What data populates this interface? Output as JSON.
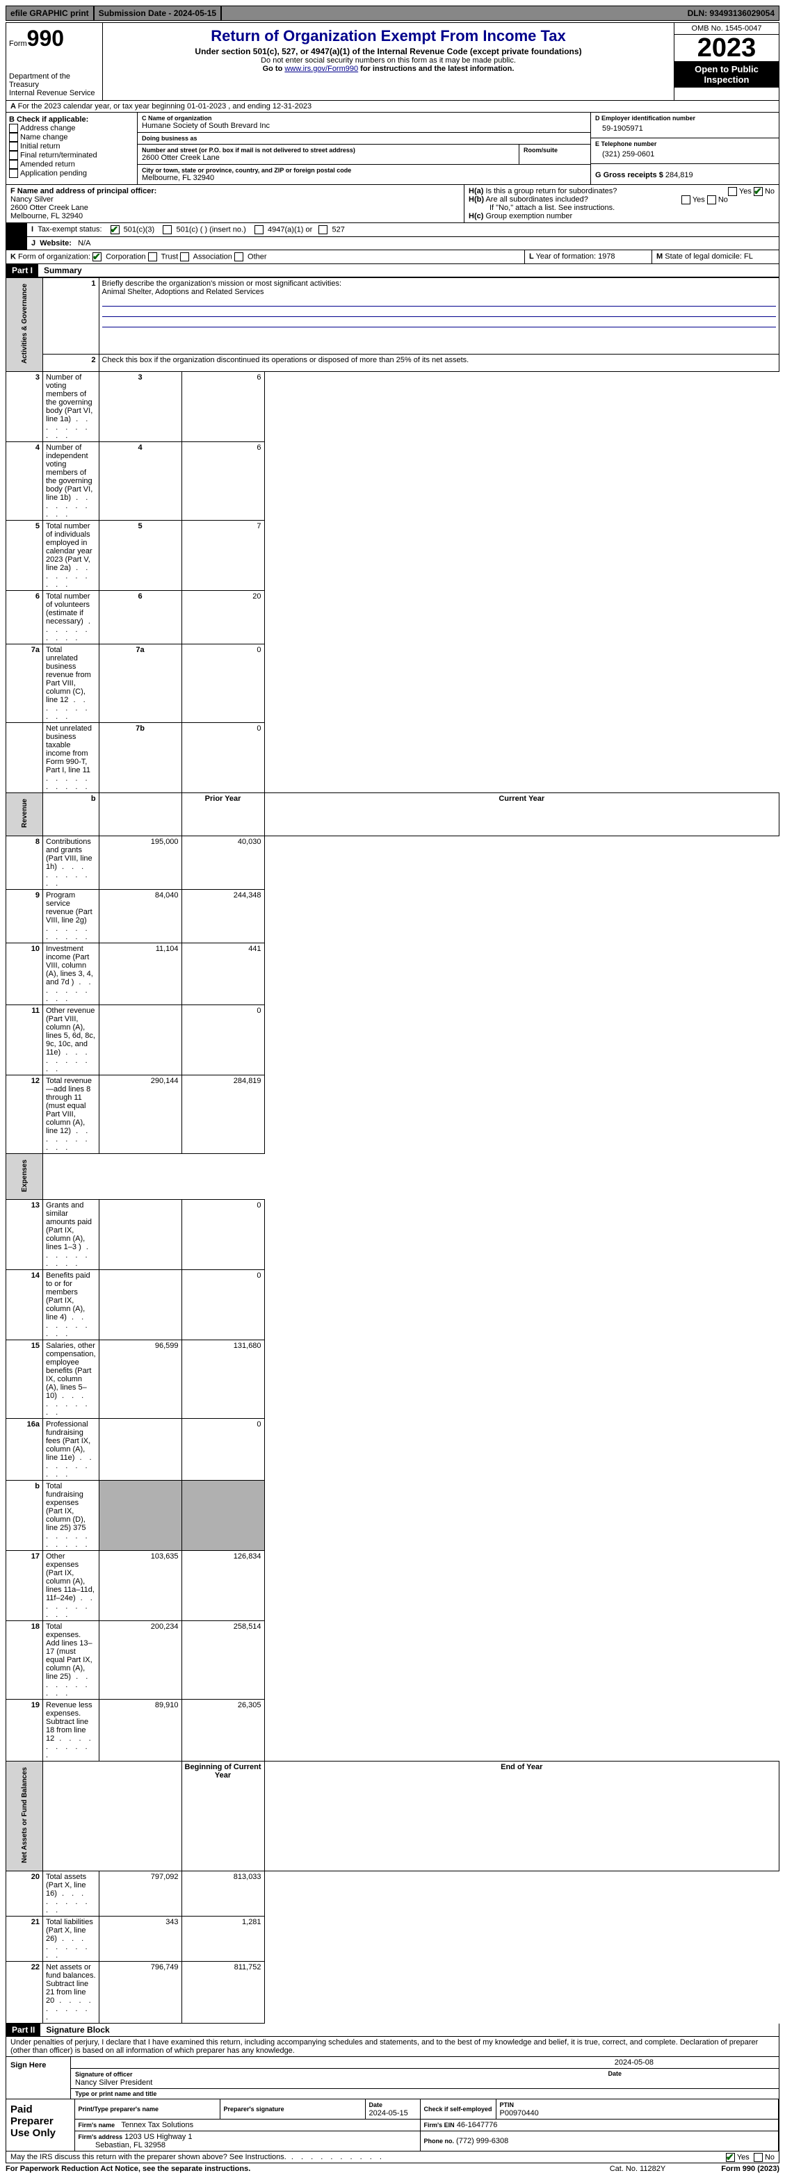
{
  "topbar": {
    "efile": "efile GRAPHIC print",
    "sub": "Submission Date - 2024-05-15",
    "dln": "DLN: 93493136029054"
  },
  "hdr": {
    "form": "990",
    "formword": "Form",
    "dept": "Department of the Treasury\nInternal Revenue Service",
    "title": "Return of Organization Exempt From Income Tax",
    "under": "Under section 501(c), 527, or 4947(a)(1) of the Internal Revenue Code (except private foundations)",
    "ssn": "Do not enter social security numbers on this form as it may be made public.",
    "goto": "Go to ",
    "link": "www.irs.gov/Form990",
    "goto2": " for instructions and the latest information.",
    "omb": "OMB No. 1545-0047",
    "year": "2023",
    "inspect": "Open to Public Inspection"
  },
  "A": "For the 2023 calendar year, or tax year beginning 01-01-2023    , and ending 12-31-2023",
  "B": {
    "hdr": "B Check if applicable:",
    "items": [
      "Address change",
      "Name change",
      "Initial return",
      "Final return/terminated",
      "Amended return",
      "Application pending"
    ]
  },
  "C": {
    "namelbl": "C Name of organization",
    "name": "Humane Society of South Brevard Inc",
    "dbalbl": "Doing business as",
    "dba": "",
    "addrlbl": "Number and street (or P.O. box if mail is not delivered to street address)",
    "room": "Room/suite",
    "addr": "2600 Otter Creek Lane",
    "citylbl": "City or town, state or province, country, and ZIP or foreign postal code",
    "city": "Melbourne, FL  32940"
  },
  "D": {
    "lbl": "D Employer identification number",
    "val": "59-1905971"
  },
  "E": {
    "lbl": "E Telephone number",
    "val": "(321) 259-0601"
  },
  "G": {
    "lbl": "G Gross receipts $ ",
    "val": "284,819"
  },
  "F": {
    "lbl": "F  Name and address of principal officer:",
    "name": "Nancy Silver",
    "addr": "2600 Otter Creek Lane",
    "city": "Melbourne, FL  32940"
  },
  "H": {
    "a": "Is this a group return for subordinates?",
    "b": "Are all subordinates included?",
    "bnote": "If \"No,\" attach a list. See instructions.",
    "c": "Group exemption number",
    "yes": "Yes",
    "no": "No"
  },
  "I": {
    "lbl": "Tax-exempt status:",
    "o1": "501(c)(3)",
    "o2": "501(c) (  ) (insert no.)",
    "o3": "4947(a)(1) or",
    "o4": "527"
  },
  "J": {
    "lbl": "Website:",
    "val": "N/A"
  },
  "K": {
    "lbl": "Form of organization:",
    "o": [
      "Corporation",
      "Trust",
      "Association",
      "Other"
    ]
  },
  "L": {
    "lbl": "Year of formation: ",
    "val": "1978"
  },
  "M": {
    "lbl": "State of legal domicile: ",
    "val": "FL"
  },
  "P1": {
    "part": "Part I",
    "title": "Summary",
    "l1": "Briefly describe the organization's mission or most significant activities:",
    "mission": "Animal Shelter, Adoptions and Related Services",
    "l2": "Check this box      if the organization discontinued its operations or disposed of more than 25% of its net assets.",
    "rows_gov": [
      {
        "n": "3",
        "t": "Number of voting members of the governing body (Part VI, line 1a)",
        "k": "3",
        "v": "6"
      },
      {
        "n": "4",
        "t": "Number of independent voting members of the governing body (Part VI, line 1b)",
        "k": "4",
        "v": "6"
      },
      {
        "n": "5",
        "t": "Total number of individuals employed in calendar year 2023 (Part V, line 2a)",
        "k": "5",
        "v": "7"
      },
      {
        "n": "6",
        "t": "Total number of volunteers (estimate if necessary)",
        "k": "6",
        "v": "20"
      },
      {
        "n": "7a",
        "t": "Total unrelated business revenue from Part VIII, column (C), line 12",
        "k": "7a",
        "v": "0"
      },
      {
        "n": "",
        "t": "Net unrelated business taxable income from Form 990-T, Part I, line 11",
        "k": "7b",
        "v": "0"
      }
    ],
    "col_py": "Prior Year",
    "col_cy": "Current Year",
    "rows_rev": [
      {
        "n": "8",
        "t": "Contributions and grants (Part VIII, line 1h)",
        "py": "195,000",
        "cy": "40,030"
      },
      {
        "n": "9",
        "t": "Program service revenue (Part VIII, line 2g)",
        "py": "84,040",
        "cy": "244,348"
      },
      {
        "n": "10",
        "t": "Investment income (Part VIII, column (A), lines 3, 4, and 7d )",
        "py": "11,104",
        "cy": "441"
      },
      {
        "n": "11",
        "t": "Other revenue (Part VIII, column (A), lines 5, 6d, 8c, 9c, 10c, and 11e)",
        "py": "",
        "cy": "0"
      },
      {
        "n": "12",
        "t": "Total revenue—add lines 8 through 11 (must equal Part VIII, column (A), line 12)",
        "py": "290,144",
        "cy": "284,819"
      }
    ],
    "rows_exp": [
      {
        "n": "13",
        "t": "Grants and similar amounts paid (Part IX, column (A), lines 1–3 )",
        "py": "",
        "cy": "0"
      },
      {
        "n": "14",
        "t": "Benefits paid to or for members (Part IX, column (A), line 4)",
        "py": "",
        "cy": "0"
      },
      {
        "n": "15",
        "t": "Salaries, other compensation, employee benefits (Part IX, column (A), lines 5–10)",
        "py": "96,599",
        "cy": "131,680"
      },
      {
        "n": "16a",
        "t": "Professional fundraising fees (Part IX, column (A), line 11e)",
        "py": "",
        "cy": "0"
      },
      {
        "n": "b",
        "t": "Total fundraising expenses (Part IX, column (D), line 25) 375",
        "py": "GRAY",
        "cy": "GRAY"
      },
      {
        "n": "17",
        "t": "Other expenses (Part IX, column (A), lines 11a–11d, 11f–24e)",
        "py": "103,635",
        "cy": "126,834"
      },
      {
        "n": "18",
        "t": "Total expenses. Add lines 13–17 (must equal Part IX, column (A), line 25)",
        "py": "200,234",
        "cy": "258,514"
      },
      {
        "n": "19",
        "t": "Revenue less expenses. Subtract line 18 from line 12",
        "py": "89,910",
        "cy": "26,305"
      }
    ],
    "col_by": "Beginning of Current Year",
    "col_ey": "End of Year",
    "rows_net": [
      {
        "n": "20",
        "t": "Total assets (Part X, line 16)",
        "py": "797,092",
        "cy": "813,033"
      },
      {
        "n": "21",
        "t": "Total liabilities (Part X, line 26)",
        "py": "343",
        "cy": "1,281"
      },
      {
        "n": "22",
        "t": "Net assets or fund balances. Subtract line 21 from line 20",
        "py": "796,749",
        "cy": "811,752"
      }
    ],
    "side_gov": "Activities & Governance",
    "side_rev": "Revenue",
    "side_exp": "Expenses",
    "side_net": "Net Assets or Fund Balances"
  },
  "P2": {
    "part": "Part II",
    "title": "Signature Block",
    "decl": "Under penalties of perjury, I declare that I have examined this return, including accompanying schedules and statements, and to the best of my knowledge and belief, it is true, correct, and complete. Declaration of preparer (other than officer) is based on all information of which preparer has any knowledge.",
    "sign": "Sign Here",
    "siglbl": "Signature of officer",
    "datelbl": "Date",
    "sigdate": "2024-05-08",
    "name": "Nancy Silver President",
    "namelbl": "Type or print name and title",
    "paid": "Paid Preparer Use Only",
    "pp_name": "Print/Type preparer's name",
    "pp_sig": "Preparer's signature",
    "pp_date": "Date",
    "pp_dateval": "2024-05-15",
    "pp_check": "Check       if self-employed",
    "pp_ptin": "PTIN",
    "pp_ptinval": "P00970440",
    "firm": "Firm's name",
    "firmval": "Tennex Tax Solutions",
    "ein": "Firm's EIN",
    "einval": "46-1647776",
    "firmaddr": "Firm's address",
    "firmaddrval": "1203 US Highway 1",
    "firmcity": "Sebastian, FL  32958",
    "phone": "Phone no.",
    "phoneval": "(772) 999-6308",
    "discuss": "May the IRS discuss this return with the preparer shown above? See Instructions."
  },
  "foot": {
    "pra": "For Paperwork Reduction Act Notice, see the separate instructions.",
    "cat": "Cat. No. 11282Y",
    "form": "Form 990 (2023)"
  }
}
